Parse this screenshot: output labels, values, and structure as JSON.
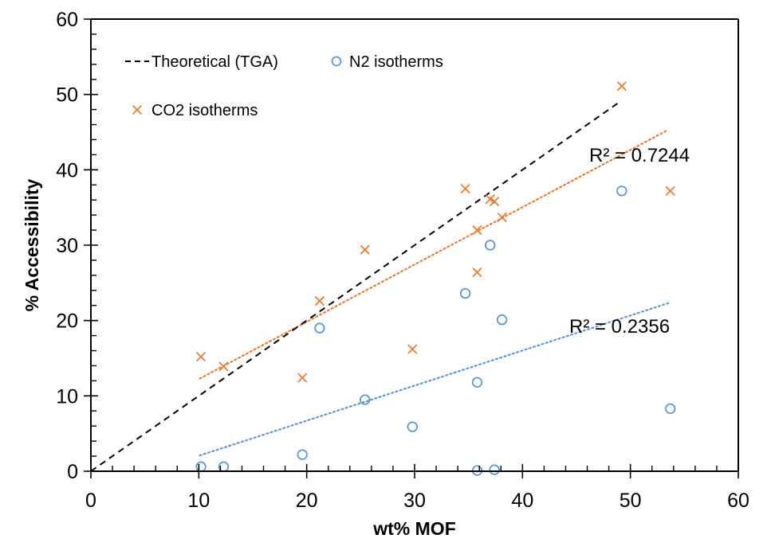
{
  "chart_data": {
    "type": "scatter",
    "title": "",
    "xlabel": "wt% MOF",
    "ylabel": "% Accessibility",
    "xlim": [
      0,
      60
    ],
    "ylim": [
      0,
      60
    ],
    "x_major_ticks": [
      0,
      10,
      20,
      30,
      40,
      50,
      60
    ],
    "y_major_ticks": [
      0,
      10,
      20,
      30,
      40,
      50,
      60
    ],
    "minor_tick_step": 2,
    "grid": false,
    "legend": {
      "placement": "top-left",
      "entries": [
        {
          "label": "Theoretical (TGA)",
          "marker": "dashed-line",
          "color": "#000000"
        },
        {
          "label": "N2 isotherms",
          "marker": "circle",
          "color": "#5B9BD5"
        },
        {
          "label": "CO2 isotherms",
          "marker": "x",
          "color": "#ED7D31"
        }
      ]
    },
    "series": [
      {
        "name": "Theoretical (TGA)",
        "kind": "line",
        "style": "dashed",
        "color": "#000000",
        "x": [
          0,
          49
        ],
        "y": [
          0,
          49
        ]
      },
      {
        "name": "N2 isotherms",
        "kind": "scatter",
        "marker": "circle",
        "color": "#5B9BD5",
        "x": [
          10.2,
          12.3,
          19.6,
          21.2,
          25.4,
          29.8,
          34.7,
          35.8,
          35.8,
          37.0,
          37.4,
          38.1,
          49.2,
          53.7
        ],
        "y": [
          0.6,
          0.6,
          2.2,
          19.0,
          9.5,
          5.9,
          23.6,
          11.8,
          0.1,
          30.0,
          0.2,
          20.1,
          37.2,
          8.3
        ]
      },
      {
        "name": "CO2 isotherms",
        "kind": "scatter",
        "marker": "x",
        "color": "#ED7D31",
        "x": [
          10.2,
          12.3,
          19.6,
          21.2,
          25.4,
          29.8,
          34.7,
          35.8,
          35.8,
          37.0,
          37.4,
          38.1,
          49.2,
          53.7
        ],
        "y": [
          15.2,
          13.9,
          12.4,
          22.6,
          29.4,
          16.2,
          37.5,
          32.0,
          26.4,
          36.1,
          35.8,
          33.7,
          51.1,
          37.2
        ]
      }
    ],
    "trendlines": [
      {
        "series": "CO2 isotherms",
        "style": "dotted",
        "color": "#ED7D31",
        "x": [
          10.1,
          53.5
        ],
        "y": [
          12.3,
          45.3
        ],
        "r2_label": "R² = 0.7244"
      },
      {
        "series": "N2 isotherms",
        "style": "dotted",
        "color": "#5B9BD5",
        "x": [
          10.1,
          53.5
        ],
        "y": [
          2.1,
          22.3
        ],
        "r2_label": "R² = 0.2356"
      }
    ]
  }
}
